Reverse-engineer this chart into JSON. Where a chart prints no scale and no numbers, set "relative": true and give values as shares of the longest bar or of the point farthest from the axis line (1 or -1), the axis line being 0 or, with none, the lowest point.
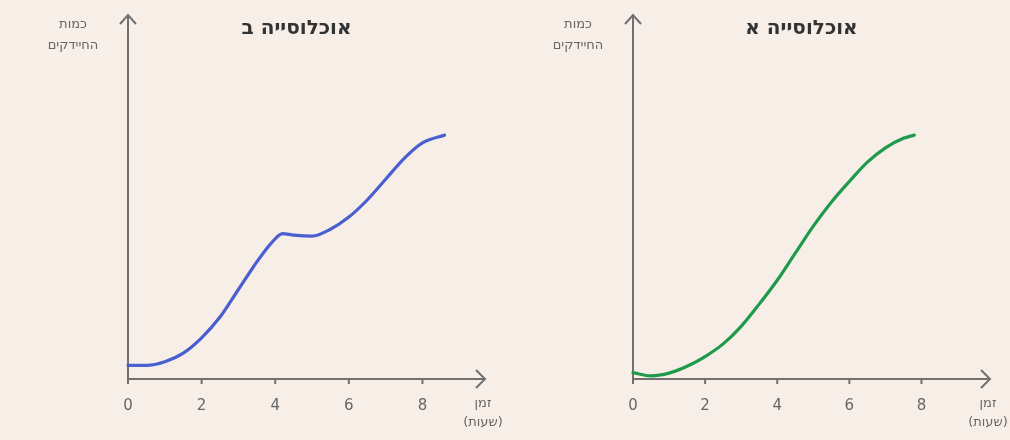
{
  "chart_data": [
    {
      "type": "line",
      "title": "אוכלוסייה ב",
      "xlabel": "זמן (שעות)",
      "ylabel": "כמות החיידקים",
      "relative": true,
      "xlim": [
        0,
        9.7
      ],
      "xticks": [
        0,
        2,
        4,
        6,
        8
      ],
      "x": [
        0,
        0.5,
        1,
        1.5,
        2,
        2.5,
        3,
        3.5,
        3.9,
        4.2,
        4.5,
        5,
        5.5,
        6,
        6.5,
        7,
        7.5,
        8,
        8.6
      ],
      "series": [
        {
          "color": "#4a5fcf",
          "values": [
            0.056,
            0.056,
            0.071,
            0.106,
            0.169,
            0.254,
            0.367,
            0.48,
            0.558,
            0.596,
            0.59,
            0.586,
            0.614,
            0.664,
            0.734,
            0.819,
            0.904,
            0.968,
            1.0
          ]
        }
      ]
    },
    {
      "type": "line",
      "title": "אוכלוסייה א",
      "xlabel": "זמן (שעות)",
      "ylabel": "כמות החיידקים",
      "relative": true,
      "xlim": [
        0,
        9.9
      ],
      "xticks": [
        0,
        2,
        4,
        6,
        8
      ],
      "x": [
        0,
        0.5,
        1,
        1.5,
        2,
        2.5,
        3,
        3.5,
        4,
        4.5,
        5,
        5.5,
        6,
        6.5,
        7,
        7.5,
        7.8
      ],
      "series": [
        {
          "color": "#1f9a4a",
          "values": [
            0.026,
            0.013,
            0.024,
            0.052,
            0.092,
            0.144,
            0.216,
            0.307,
            0.405,
            0.516,
            0.627,
            0.725,
            0.81,
            0.889,
            0.948,
            0.987,
            1.0
          ]
        }
      ]
    }
  ]
}
